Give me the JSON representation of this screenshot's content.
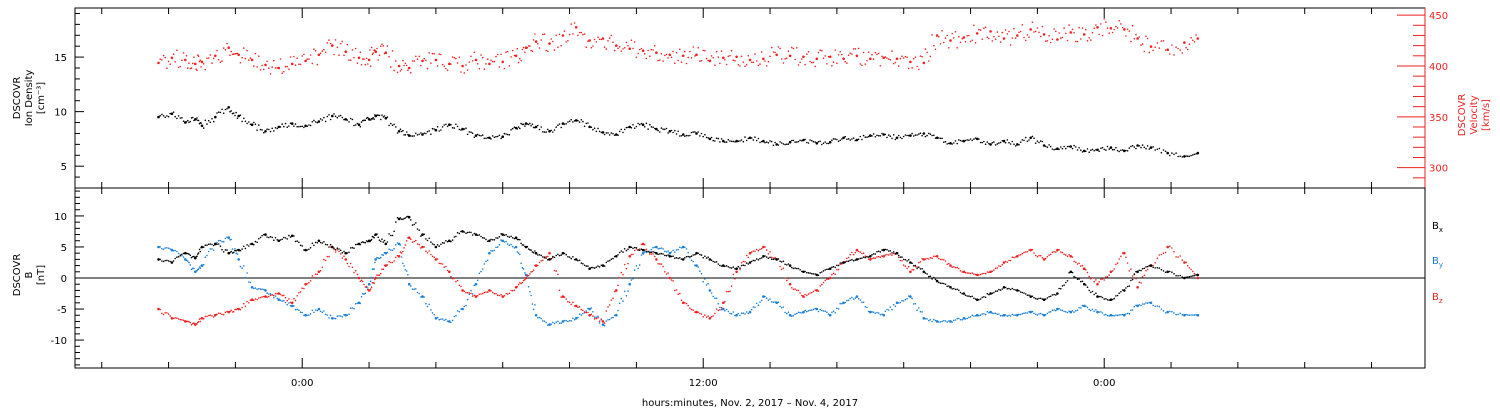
{
  "chart_data": [
    {
      "type": "scatter",
      "panel": "plasma",
      "ylabel_left": [
        "DSCOVR",
        "Ion Density",
        "[cm⁻³]"
      ],
      "ylabel_right": [
        "DSCOVR",
        "Velocity",
        "[km/s]"
      ],
      "ylim_left": [
        3,
        19.5
      ],
      "ylim_right": [
        280,
        457
      ],
      "yticks_left": [
        5,
        10,
        15
      ],
      "yticks_right": [
        300,
        350,
        400,
        450
      ],
      "colors": {
        "density": "#000000",
        "velocity": "#ee2222"
      },
      "series": [
        {
          "axis": "left",
          "color": "#000000",
          "x": [
            -4.3,
            -3.9,
            -3.5,
            -3.2,
            -3.0,
            -2.6,
            -2.2,
            -1.9,
            -1.5,
            -1.1,
            -0.7,
            -0.3,
            0.1,
            0.5,
            0.9,
            1.3,
            1.7,
            2.0,
            2.2,
            2.5,
            2.9,
            3.2,
            3.6,
            4.0,
            4.4,
            4.8,
            5.2,
            5.6,
            6.0,
            6.4,
            6.7,
            7.0,
            7.4,
            7.8,
            8.2,
            8.6,
            9.0,
            9.4,
            9.8,
            10.2,
            10.6,
            11.0,
            11.4,
            11.8,
            12.2,
            12.6,
            13.0,
            13.4,
            13.8,
            14.2,
            14.6,
            15.0,
            15.4,
            15.8,
            16.2,
            16.6,
            17.0,
            17.4,
            17.8,
            18.2,
            18.6,
            19.0,
            19.4,
            19.8,
            20.2,
            20.6,
            21.0,
            21.4,
            21.8,
            22.2,
            22.6,
            23.0,
            23.4,
            23.8,
            24.2,
            24.6,
            25.0,
            25.4,
            25.9,
            26.4,
            26.8
          ],
          "y": [
            9.5,
            9.8,
            9.0,
            9.3,
            8.7,
            9.5,
            10.4,
            9.6,
            8.8,
            8.2,
            8.6,
            8.9,
            8.7,
            9.1,
            9.6,
            9.3,
            8.8,
            9.3,
            9.6,
            9.4,
            8.2,
            7.8,
            7.9,
            8.3,
            8.8,
            8.4,
            7.8,
            7.6,
            7.7,
            8.5,
            8.9,
            8.6,
            8.2,
            8.9,
            9.2,
            8.6,
            8.1,
            7.9,
            8.6,
            8.8,
            8.4,
            8.2,
            7.9,
            8.0,
            7.5,
            7.3,
            7.3,
            7.6,
            7.3,
            7.0,
            7.2,
            7.4,
            7.1,
            7.2,
            7.6,
            7.4,
            7.8,
            7.9,
            7.6,
            7.8,
            8.0,
            7.6,
            7.1,
            7.3,
            7.5,
            7.0,
            7.3,
            7.0,
            7.6,
            6.9,
            6.6,
            6.8,
            6.4,
            6.5,
            6.7,
            6.4,
            6.9,
            6.7,
            6.2,
            5.9,
            6.2
          ]
        },
        {
          "axis": "right",
          "color": "#ee2222",
          "x": [
            -4.3,
            -3.9,
            -3.5,
            -3.2,
            -3.0,
            -2.6,
            -2.2,
            -1.9,
            -1.5,
            -1.1,
            -0.7,
            -0.3,
            0.1,
            0.5,
            0.9,
            1.3,
            1.7,
            2.0,
            2.2,
            2.5,
            2.9,
            3.2,
            3.6,
            4.0,
            4.4,
            4.8,
            5.2,
            5.6,
            6.0,
            6.4,
            6.7,
            7.0,
            7.4,
            7.8,
            8.2,
            8.6,
            9.0,
            9.4,
            9.8,
            10.2,
            10.6,
            11.0,
            11.4,
            11.8,
            12.2,
            12.6,
            13.0,
            13.4,
            13.8,
            14.2,
            14.6,
            15.0,
            15.4,
            15.8,
            16.2,
            16.6,
            17.0,
            17.4,
            17.8,
            18.2,
            18.6,
            19.0,
            19.4,
            19.8,
            20.2,
            20.6,
            21.0,
            21.4,
            21.8,
            22.2,
            22.6,
            23.0,
            23.4,
            23.8,
            24.2,
            24.6,
            25.0,
            25.4,
            25.9,
            26.4,
            26.8
          ],
          "y": [
            403,
            408,
            406,
            402,
            404,
            410,
            418,
            411,
            406,
            401,
            398,
            402,
            405,
            411,
            420,
            414,
            408,
            406,
            414,
            413,
            400,
            398,
            405,
            406,
            402,
            400,
            406,
            402,
            404,
            410,
            418,
            424,
            422,
            430,
            438,
            425,
            427,
            420,
            417,
            415,
            413,
            411,
            410,
            411,
            405,
            408,
            409,
            406,
            407,
            411,
            410,
            409,
            407,
            409,
            407,
            410,
            407,
            408,
            407,
            404,
            403,
            430,
            425,
            428,
            432,
            434,
            427,
            430,
            436,
            431,
            426,
            433,
            431,
            438,
            437,
            436,
            427,
            419,
            416,
            423,
            427
          ]
        }
      ]
    },
    {
      "type": "scatter",
      "panel": "magnetic-field",
      "ylabel_left": [
        "DSCOVR",
        "B",
        "[nT]"
      ],
      "ylim": [
        -14.5,
        14.5
      ],
      "yticks": [
        -10,
        -5,
        0,
        5,
        10
      ],
      "zero_line": true,
      "legend": [
        {
          "label": "B",
          "sub": "x",
          "color": "#000000"
        },
        {
          "label": "B",
          "sub": "y",
          "color": "#1a7fd6"
        },
        {
          "label": "B",
          "sub": "z",
          "color": "#ee2222"
        }
      ],
      "series": [
        {
          "name_label": "Bx",
          "color": "#000000",
          "x": [
            -4.3,
            -3.9,
            -3.5,
            -3.2,
            -3.0,
            -2.6,
            -2.2,
            -1.9,
            -1.5,
            -1.1,
            -0.7,
            -0.3,
            0.1,
            0.5,
            0.9,
            1.3,
            1.7,
            2.0,
            2.2,
            2.5,
            2.9,
            3.2,
            3.6,
            4.0,
            4.4,
            4.8,
            5.2,
            5.6,
            6.0,
            6.4,
            6.7,
            7.0,
            7.4,
            7.8,
            8.2,
            8.6,
            9.0,
            9.4,
            9.8,
            10.2,
            10.6,
            11.0,
            11.4,
            11.8,
            12.2,
            12.6,
            13.0,
            13.4,
            13.8,
            14.2,
            14.6,
            15.0,
            15.4,
            15.8,
            16.2,
            16.6,
            17.0,
            17.4,
            17.8,
            18.2,
            18.6,
            19.0,
            19.4,
            19.8,
            20.2,
            20.6,
            21.0,
            21.4,
            21.8,
            22.2,
            22.6,
            23.0,
            23.4,
            23.8,
            24.2,
            24.6,
            25.0,
            25.4,
            25.9,
            26.4,
            26.8
          ],
          "y": [
            3.0,
            2.5,
            4.0,
            3.2,
            5.0,
            5.5,
            4.0,
            4.5,
            5.5,
            7.0,
            6.0,
            6.8,
            4.5,
            6.0,
            5.0,
            4.0,
            5.5,
            6.0,
            7.0,
            5.5,
            9.5,
            9.8,
            7.0,
            5.0,
            6.0,
            7.5,
            7.0,
            6.0,
            7.0,
            6.5,
            5.0,
            4.0,
            3.0,
            4.0,
            3.0,
            1.5,
            2.0,
            3.5,
            5.0,
            4.5,
            4.0,
            3.5,
            3.0,
            4.0,
            3.0,
            2.0,
            1.5,
            2.5,
            3.5,
            3.0,
            2.0,
            1.0,
            0.5,
            1.5,
            2.5,
            3.0,
            3.5,
            4.5,
            4.0,
            2.5,
            1.0,
            -0.5,
            -1.5,
            -2.5,
            -3.5,
            -2.5,
            -1.5,
            -2.0,
            -3.0,
            -3.5,
            -2.5,
            1.0,
            -1.0,
            -3.0,
            -3.5,
            -2.0,
            1.0,
            2.0,
            1.0,
            0.0,
            0.5
          ]
        },
        {
          "name_label": "By",
          "color": "#1a7fd6",
          "x": [
            -4.3,
            -3.9,
            -3.5,
            -3.2,
            -3.0,
            -2.6,
            -2.2,
            -1.9,
            -1.5,
            -1.1,
            -0.7,
            -0.3,
            0.1,
            0.5,
            0.9,
            1.3,
            1.7,
            2.0,
            2.2,
            2.5,
            2.9,
            3.2,
            3.6,
            4.0,
            4.4,
            4.8,
            5.2,
            5.6,
            6.0,
            6.4,
            6.7,
            7.0,
            7.4,
            7.8,
            8.2,
            8.6,
            9.0,
            9.4,
            9.8,
            10.2,
            10.6,
            11.0,
            11.4,
            11.8,
            12.2,
            12.6,
            13.0,
            13.4,
            13.8,
            14.2,
            14.6,
            15.0,
            15.4,
            15.8,
            16.2,
            16.6,
            17.0,
            17.4,
            17.8,
            18.2,
            18.6,
            19.0,
            19.4,
            19.8,
            20.2,
            20.6,
            21.0,
            21.4,
            21.8,
            22.2,
            22.6,
            23.0,
            23.4,
            23.8,
            24.2,
            24.6,
            25.0,
            25.4,
            25.9,
            26.4,
            26.8
          ],
          "y": [
            5.0,
            4.5,
            3.0,
            1.0,
            2.0,
            5.5,
            6.5,
            3.0,
            -1.5,
            -2.0,
            -3.5,
            -4.5,
            -6.0,
            -5.0,
            -6.5,
            -6.0,
            -4.0,
            -1.0,
            3.0,
            4.0,
            5.5,
            -1.0,
            -3.0,
            -6.5,
            -7.0,
            -5.0,
            -1.0,
            4.0,
            6.0,
            5.0,
            0.5,
            -6.0,
            -7.5,
            -7.0,
            -6.5,
            -5.0,
            -7.5,
            -6.0,
            -1.0,
            4.0,
            5.0,
            4.0,
            5.0,
            2.0,
            -2.0,
            -5.0,
            -6.0,
            -5.5,
            -3.0,
            -4.0,
            -6.0,
            -5.5,
            -5.0,
            -6.0,
            -4.0,
            -3.0,
            -5.5,
            -6.0,
            -4.0,
            -3.0,
            -6.5,
            -7.0,
            -7.0,
            -6.5,
            -6.0,
            -5.5,
            -6.0,
            -6.0,
            -5.5,
            -6.0,
            -5.0,
            -5.5,
            -4.5,
            -5.5,
            -6.0,
            -6.0,
            -4.5,
            -4.0,
            -5.5,
            -6.0,
            -6.0
          ]
        },
        {
          "name_label": "Bz",
          "color": "#ee2222",
          "x": [
            -4.3,
            -3.9,
            -3.5,
            -3.2,
            -3.0,
            -2.6,
            -2.2,
            -1.9,
            -1.5,
            -1.1,
            -0.7,
            -0.3,
            0.1,
            0.5,
            0.9,
            1.3,
            1.7,
            2.0,
            2.2,
            2.5,
            2.9,
            3.2,
            3.6,
            4.0,
            4.4,
            4.8,
            5.2,
            5.6,
            6.0,
            6.4,
            6.7,
            7.0,
            7.4,
            7.8,
            8.2,
            8.6,
            9.0,
            9.4,
            9.8,
            10.2,
            10.6,
            11.0,
            11.4,
            11.8,
            12.2,
            12.6,
            13.0,
            13.4,
            13.8,
            14.2,
            14.6,
            15.0,
            15.4,
            15.8,
            16.2,
            16.6,
            17.0,
            17.4,
            17.8,
            18.2,
            18.6,
            19.0,
            19.4,
            19.8,
            20.2,
            20.6,
            21.0,
            21.4,
            21.8,
            22.2,
            22.6,
            23.0,
            23.4,
            23.8,
            24.2,
            24.6,
            25.0,
            25.4,
            25.9,
            26.4,
            26.8
          ],
          "y": [
            -5.0,
            -6.5,
            -7.0,
            -7.5,
            -6.5,
            -6.0,
            -5.5,
            -5.0,
            -3.5,
            -3.0,
            -2.5,
            -4.0,
            -1.0,
            1.0,
            5.0,
            3.0,
            0.0,
            -2.0,
            0.0,
            2.0,
            3.5,
            6.5,
            5.0,
            3.0,
            1.0,
            -2.0,
            -3.0,
            -2.0,
            -3.0,
            -1.5,
            0.0,
            2.0,
            4.0,
            -3.0,
            -4.5,
            -6.0,
            -7.0,
            -2.0,
            3.5,
            5.5,
            3.0,
            0.0,
            -4.0,
            -5.5,
            -6.5,
            -4.0,
            1.0,
            4.0,
            5.0,
            3.0,
            -1.0,
            -3.0,
            -2.0,
            0.0,
            2.5,
            4.5,
            3.0,
            3.5,
            4.0,
            1.0,
            3.0,
            3.5,
            2.0,
            1.0,
            0.5,
            1.0,
            2.5,
            3.5,
            4.5,
            3.0,
            4.5,
            3.5,
            1.5,
            -1.0,
            1.0,
            4.0,
            -1.5,
            2.0,
            5.0,
            2.5,
            0.0
          ]
        }
      ]
    }
  ],
  "xaxis": {
    "xlim": [
      -6.8,
      33.6
    ],
    "major_ticks": [
      0,
      12,
      24
    ],
    "major_labels": [
      "0:00",
      "12:00",
      "0:00"
    ],
    "minor_tick_step": 2,
    "xlabel": "hours:minutes, Nov.  2, 2017 – Nov.  4, 2017"
  },
  "colors": {
    "black": "#000000",
    "blue": "#1a7fd6",
    "red": "#ee2222"
  }
}
